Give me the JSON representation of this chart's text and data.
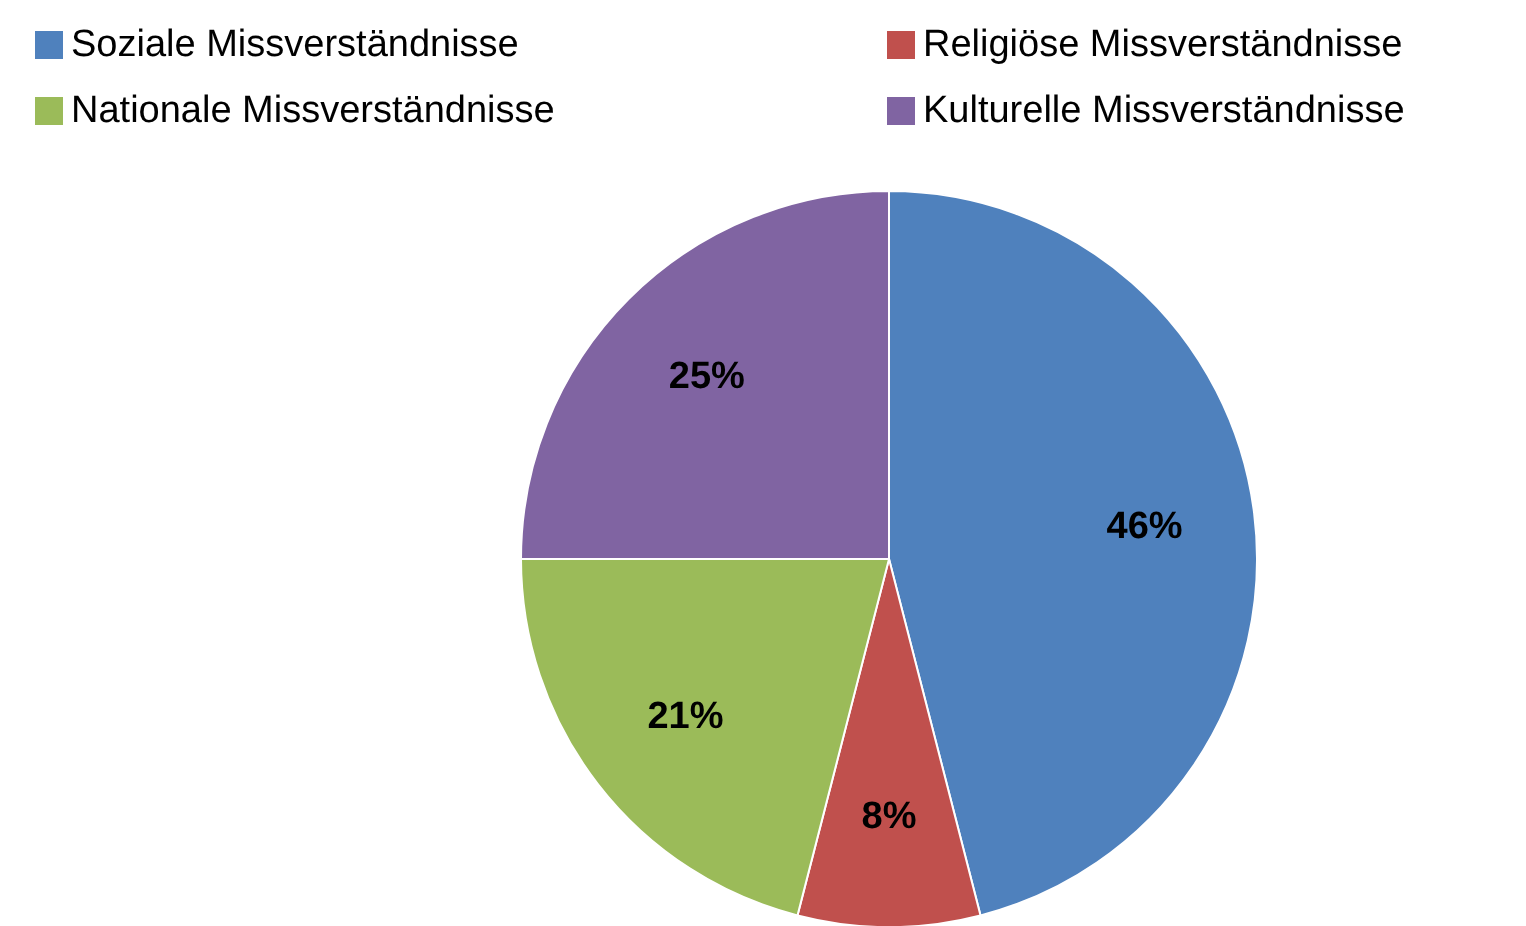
{
  "chart_data": {
    "type": "pie",
    "categories": [
      "Soziale Missverständnisse",
      "Religiöse Missverständnisse",
      "Nationale Missverständnisse",
      "Kulturelle Missverständnisse"
    ],
    "values": [
      46,
      8,
      21,
      25
    ],
    "colors": [
      "#4f81bd",
      "#c0504d",
      "#9bbb59",
      "#8064a2"
    ],
    "value_labels": [
      "46%",
      "8%",
      "21%",
      "25%"
    ],
    "legend": "top"
  }
}
